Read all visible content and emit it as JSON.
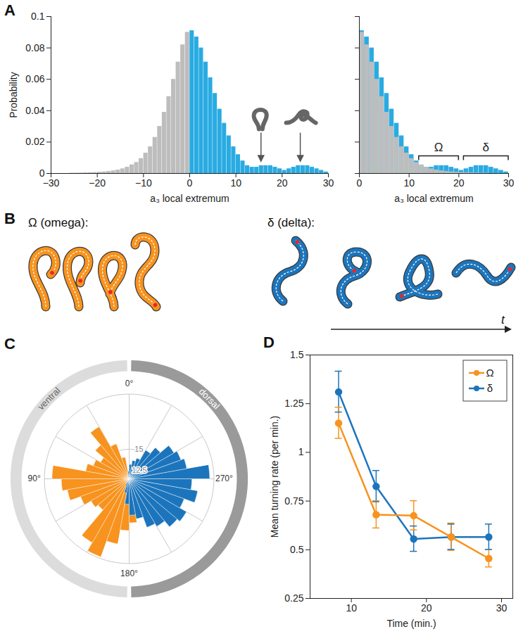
{
  "chart_data": [
    {
      "type": "histogram",
      "panel": "A",
      "xlabel": "a₃ local extremum",
      "ylabel": "Probability",
      "bins": [
        -30,
        -29,
        -28,
        -27,
        -26,
        -25,
        -24,
        -23,
        -22,
        -21,
        -20,
        -19,
        -18,
        -17,
        -16,
        -15,
        -14,
        -13,
        -12,
        -11,
        -10,
        -9,
        -8,
        -7,
        -6,
        -5,
        -4,
        -3,
        -2,
        -1,
        0,
        1,
        2,
        3,
        4,
        5,
        6,
        7,
        8,
        9,
        10,
        11,
        12,
        13,
        14,
        15,
        16,
        17,
        18,
        19,
        20,
        21,
        22,
        23,
        24,
        25,
        26,
        27,
        28,
        29,
        30
      ],
      "values": [
        0,
        0,
        0,
        0,
        0.0002,
        0.0002,
        0.0003,
        0.0004,
        0.0005,
        0.0006,
        0.0008,
        0.001,
        0.0013,
        0.0017,
        0.0022,
        0.003,
        0.004,
        0.0055,
        0.007,
        0.0095,
        0.013,
        0.017,
        0.023,
        0.03,
        0.039,
        0.049,
        0.06,
        0.071,
        0.082,
        0.09,
        0.091,
        0.087,
        0.08,
        0.071,
        0.061,
        0.051,
        0.041,
        0.032,
        0.024,
        0.017,
        0.012,
        0.008,
        0.005,
        0.004,
        0.004,
        0.005,
        0.005,
        0.005,
        0.004,
        0.003,
        0.002,
        0.003,
        0.004,
        0.005,
        0.005,
        0.005,
        0.004,
        0.003,
        0.002,
        0.001
      ],
      "colors": [
        "#bdbdbd",
        "#bdbdbd",
        "#bdbdbd",
        "#bdbdbd",
        "#bdbdbd",
        "#bdbdbd",
        "#bdbdbd",
        "#bdbdbd",
        "#bdbdbd",
        "#bdbdbd",
        "#bdbdbd",
        "#bdbdbd",
        "#bdbdbd",
        "#bdbdbd",
        "#bdbdbd",
        "#bdbdbd",
        "#bdbdbd",
        "#bdbdbd",
        "#bdbdbd",
        "#bdbdbd",
        "#bdbdbd",
        "#bdbdbd",
        "#bdbdbd",
        "#bdbdbd",
        "#bdbdbd",
        "#bdbdbd",
        "#bdbdbd",
        "#bdbdbd",
        "#bdbdbd",
        "#bdbdbd",
        "#29abe2",
        "#29abe2",
        "#29abe2",
        "#29abe2",
        "#29abe2",
        "#29abe2",
        "#29abe2",
        "#29abe2",
        "#29abe2",
        "#29abe2",
        "#29abe2",
        "#29abe2",
        "#29abe2",
        "#29abe2",
        "#29abe2",
        "#29abe2",
        "#29abe2",
        "#29abe2",
        "#29abe2",
        "#29abe2",
        "#29abe2",
        "#29abe2",
        "#29abe2",
        "#29abe2",
        "#29abe2",
        "#29abe2",
        "#29abe2",
        "#29abe2",
        "#29abe2",
        "#29abe2"
      ],
      "xlim": [
        -30,
        30
      ],
      "ylim": [
        0,
        0.1
      ],
      "xticks": [
        -30,
        -20,
        -10,
        0,
        10,
        20,
        30
      ],
      "yticks": [
        0,
        0.02,
        0.04,
        0.06,
        0.08,
        0.1
      ],
      "annotations": [
        {
          "x": 15.5,
          "y": 0.006
        },
        {
          "x": 24,
          "y": 0.006
        }
      ]
    },
    {
      "type": "histogram",
      "xlabel": "a₃ local extremum",
      "bins": [
        0,
        1,
        2,
        3,
        4,
        5,
        6,
        7,
        8,
        9,
        10,
        11,
        12,
        13,
        14,
        15,
        16,
        17,
        18,
        19,
        20,
        21,
        22,
        23,
        24,
        25,
        26,
        27,
        28,
        29,
        30
      ],
      "series": [
        {
          "color": "#29abe2",
          "values": [
            0.091,
            0.087,
            0.08,
            0.071,
            0.061,
            0.051,
            0.041,
            0.032,
            0.024,
            0.017,
            0.012,
            0.008,
            0.005,
            0.004,
            0.004,
            0.005,
            0.005,
            0.005,
            0.004,
            0.003,
            0.002,
            0.003,
            0.004,
            0.005,
            0.005,
            0.005,
            0.004,
            0.003,
            0.002,
            0.001
          ]
        },
        {
          "color": "#bdbdbd",
          "values": [
            0.09,
            0.082,
            0.071,
            0.06,
            0.049,
            0.039,
            0.03,
            0.023,
            0.017,
            0.013,
            0.0095,
            0.007,
            0.0055,
            0.004,
            0.003,
            0.0022,
            0.0017,
            0.0013,
            0.001,
            0.0008,
            0.0006,
            0.0005,
            0.0004,
            0.0003,
            0.0002,
            0.0002,
            0,
            0,
            0,
            0
          ]
        }
      ],
      "xlim": [
        0,
        30
      ],
      "ylim": [
        0,
        0.1
      ],
      "xticks": [
        0,
        10,
        20,
        30
      ],
      "yticks": [
        0,
        0.02,
        0.04,
        0.06,
        0.08,
        0.1
      ],
      "tick_labels": "x",
      "brackets": [
        {
          "label": "Ω",
          "range": [
            12,
            20
          ],
          "y": 0.011
        },
        {
          "label": "δ",
          "range": [
            21,
            30
          ],
          "y": 0.011
        }
      ]
    },
    {
      "type": "polar_bar",
      "panel": "C",
      "bin_edges": [
        0,
        10,
        20,
        30,
        40,
        50,
        60,
        70,
        80,
        90,
        100,
        110,
        120,
        130,
        140,
        150,
        160,
        170,
        180,
        190,
        200,
        210,
        220,
        230,
        240,
        250,
        260,
        270,
        280,
        290,
        300,
        310,
        320,
        330,
        340,
        350,
        360
      ],
      "series": [
        {
          "color": "#f7931e",
          "values": [
            12,
            14.1,
            15.9,
            18.6,
            16.7,
            15.4,
            16,
            16.7,
            20.6,
            19.5,
            18.9,
            17.6,
            16.7,
            16.3,
            20.2,
            21.3,
            19.3,
            17.6,
            16.7,
            15,
            13.2,
            12.4,
            11.5,
            11.5,
            11.5,
            11.5,
            11.5,
            11.5,
            11.5,
            11.5,
            11.5,
            11.5,
            11.5,
            11.5,
            11.5,
            11.8
          ]
        },
        {
          "color": "#1c75bc",
          "values": [
            12.4,
            11.9,
            11.5,
            11.5,
            11.5,
            11.5,
            11.5,
            11.5,
            11.5,
            11.5,
            11.5,
            11.5,
            11.5,
            11.5,
            11.5,
            12.4,
            13.2,
            14.5,
            15.8,
            16.3,
            17.6,
            18,
            18.9,
            19.3,
            18.4,
            19.7,
            18.9,
            21,
            18.4,
            18,
            17.6,
            16.3,
            15.4,
            14.1,
            13.7,
            13.2
          ]
        }
      ],
      "rlim": [
        11.5,
        21.5
      ],
      "rticks": [
        12.5,
        15
      ],
      "angle_ticks": [
        {
          "value": 0,
          "label": "0°"
        },
        {
          "value": 90,
          "label": "90°"
        },
        {
          "value": 180,
          "label": "180°"
        },
        {
          "value": 270,
          "label": "270°"
        }
      ],
      "angle_grid": [
        0,
        30,
        60,
        90,
        120,
        150,
        180,
        210,
        240,
        270,
        300,
        330
      ],
      "sectors": [
        {
          "label": "ventral",
          "range": [
            0,
            180
          ],
          "color": "#dcdcdc"
        },
        {
          "label": "dorsal",
          "range": [
            180,
            360
          ],
          "color": "#9a9a9a"
        }
      ]
    },
    {
      "type": "line",
      "panel": "D",
      "xlabel": "Time (min.)",
      "ylabel": "Mean turning rate (per min.)",
      "x": [
        8.3,
        13.3,
        18.3,
        23.3,
        28.3
      ],
      "series": [
        {
          "name": "Ω",
          "color": "#f7931e",
          "marker": "circle",
          "values": [
            1.15,
            0.68,
            0.675,
            0.565,
            0.455
          ],
          "errors": [
            0.08,
            0.07,
            0.075,
            0.07,
            0.045
          ]
        },
        {
          "name": "δ",
          "color": "#1c75bc",
          "marker": "circle",
          "values": [
            1.31,
            0.825,
            0.555,
            0.565,
            0.565
          ],
          "errors": [
            0.105,
            0.08,
            0.065,
            0.065,
            0.065
          ]
        }
      ],
      "xlim": [
        4.5,
        31.5
      ],
      "ylim": [
        0.25,
        1.5
      ],
      "xticks": [
        10,
        20,
        30
      ],
      "yticks": [
        0.25,
        0.5,
        0.75,
        1,
        1.25,
        1.5
      ],
      "legend": "top-right"
    }
  ],
  "diagram": {
    "panel": "B",
    "omega_label": "Ω (omega):",
    "delta_label": "δ (delta):",
    "time_label": "t",
    "omega_color": "#f7931e",
    "delta_color": "#1c75bc",
    "head_color": "#e8262d"
  }
}
